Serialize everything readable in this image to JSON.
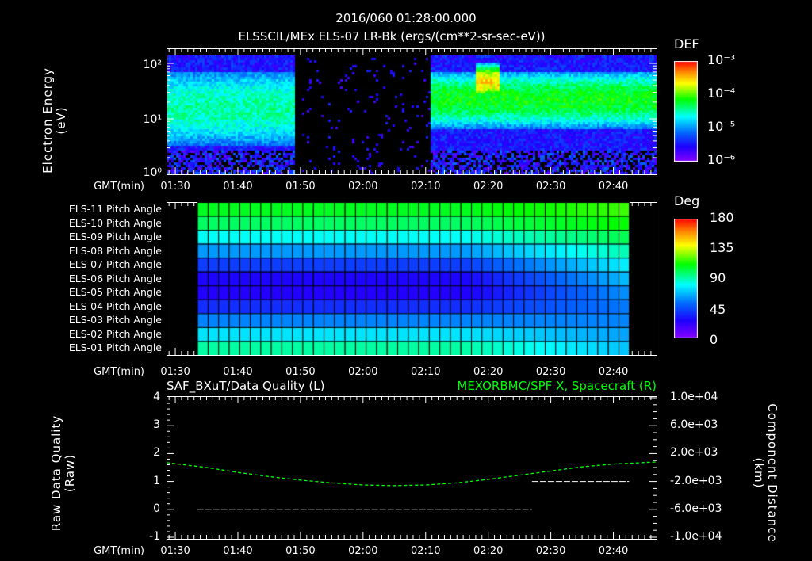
{
  "header": {
    "datetime": "2016/060 01:28:00.000",
    "title": "ELSSCIL/MEx ELS-07 LR-Bk  (ergs/(cm**2-sr-sec-eV))"
  },
  "time_axis": {
    "label": "GMT(min)",
    "ticks": [
      "01:30",
      "01:40",
      "01:50",
      "02:00",
      "02:10",
      "02:20",
      "02:30",
      "02:40"
    ],
    "range_min": [
      88.6,
      166.9
    ],
    "tick_min": [
      90,
      100,
      110,
      120,
      130,
      140,
      150,
      160
    ]
  },
  "chart_data": [
    {
      "type": "heatmap",
      "name": "spectrogram",
      "ylabel": [
        "Electron Energy",
        "(eV)"
      ],
      "yscale": "log",
      "ylim": [
        1,
        150
      ],
      "yticks": [
        "10⁰",
        "10¹",
        "10²"
      ],
      "colorbar": {
        "label": "DEF",
        "ticks": [
          "10⁻³",
          "10⁻⁴",
          "10⁻⁵",
          "10⁻⁶"
        ],
        "range": [
          1e-06,
          0.001
        ]
      },
      "gaps_min": [
        [
          109,
          130.5
        ]
      ],
      "features": [
        {
          "t": [
            88.6,
            109
          ],
          "band_eV": [
            5,
            60
          ],
          "level": 0.45
        },
        {
          "t": [
            130.5,
            166.9
          ],
          "band_eV": [
            10,
            60
          ],
          "level": 0.55
        },
        {
          "t": [
            138,
            141.5
          ],
          "band_eV": [
            30,
            90
          ],
          "level": 0.75
        }
      ]
    },
    {
      "type": "heatmap",
      "name": "pitch-angle",
      "colorbar": {
        "label": "Deg",
        "ticks": [
          "180",
          "135",
          "90",
          "45",
          "0"
        ],
        "range": [
          0,
          180
        ]
      },
      "rows": [
        "ELS-11 Pitch Angle",
        "ELS-10 Pitch Angle",
        "ELS-09 Pitch Angle",
        "ELS-08 Pitch Angle",
        "ELS-07 Pitch Angle",
        "ELS-06 Pitch Angle",
        "ELS-05 Pitch Angle",
        "ELS-04 Pitch Angle",
        "ELS-03 Pitch Angle",
        "ELS-02 Pitch Angle",
        "ELS-01 Pitch Angle"
      ],
      "t_range": [
        93.5,
        162.5
      ],
      "start_deg": [
        108,
        100,
        82,
        62,
        42,
        28,
        26,
        38,
        58,
        76,
        92
      ],
      "end_deg": [
        118,
        112,
        102,
        90,
        78,
        68,
        60,
        56,
        58,
        64,
        70
      ]
    },
    {
      "type": "line",
      "name": "data-quality",
      "title_left": "SAF_BXuT/Data Quality (L)",
      "title_right": "MEXORBMC/SPF X, Spacecraft (R)",
      "ylabel_left": [
        "Raw Data Quality",
        "(Raw)"
      ],
      "ylabel_right": [
        "Component Distance",
        "(km)"
      ],
      "ylim_left": [
        -1,
        4
      ],
      "yticks_left": [
        "4",
        "3",
        "2",
        "1",
        "0",
        "-1"
      ],
      "ylim_right": [
        -10000,
        10000
      ],
      "yticks_right": [
        "1.0e+04",
        "6.0e+03",
        "2.0e+03",
        "-2.0e+03",
        "-6.0e+03",
        "-1.0e+04"
      ],
      "quality": [
        {
          "t": [
            93.5,
            147
          ],
          "value": 0
        },
        {
          "t": [
            147,
            162.5
          ],
          "value": 1
        }
      ],
      "spacecraft_x": {
        "color": "#00ff00",
        "t": [
          88.6,
          95,
          100,
          105,
          110,
          115,
          120,
          125,
          130,
          135,
          140,
          145,
          150,
          155,
          160,
          166.9
        ],
        "km": [
          700,
          0,
          -700,
          -1300,
          -1800,
          -2200,
          -2500,
          -2600,
          -2500,
          -2200,
          -1700,
          -1100,
          -500,
          100,
          500,
          800
        ]
      }
    }
  ]
}
